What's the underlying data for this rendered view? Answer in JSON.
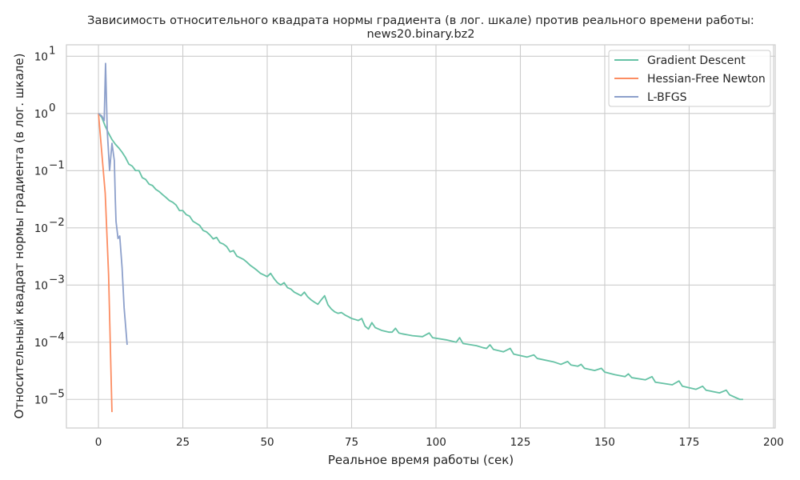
{
  "chart_data": {
    "type": "line",
    "title_line1": "Зависимость относительного квадрата нормы градиента (в лог. шкале) против реального времени работы:",
    "title_line2": "news20.binary.bz2",
    "xlabel": "Реальное время работы (сек)",
    "ylabel": "Относительный квадрат нормы градиента (в лог. шкале)",
    "xlim": [
      -9.5,
      200.5
    ],
    "ylim_log10": [
      -5.5,
      1.2
    ],
    "yscale": "log",
    "grid": true,
    "legend_position": "top-right",
    "x_ticks": [
      0,
      25,
      50,
      75,
      100,
      125,
      150,
      175,
      200
    ],
    "x_tick_labels": [
      "0",
      "25",
      "50",
      "75",
      "100",
      "125",
      "150",
      "175",
      "200"
    ],
    "y_ticks_exp": [
      1,
      0,
      -1,
      -2,
      -3,
      -4,
      -5
    ],
    "y_tick_labels": [
      {
        "base": "10",
        "exp": "1"
      },
      {
        "base": "10",
        "exp": "0"
      },
      {
        "base": "10",
        "exp": "−1"
      },
      {
        "base": "10",
        "exp": "−2"
      },
      {
        "base": "10",
        "exp": "−3"
      },
      {
        "base": "10",
        "exp": "−4"
      },
      {
        "base": "10",
        "exp": "−5"
      }
    ],
    "series": [
      {
        "name": "Gradient Descent",
        "color": "#66c2a5",
        "points": [
          [
            0,
            1.0
          ],
          [
            1,
            0.85
          ],
          [
            2,
            0.6
          ],
          [
            3,
            0.45
          ],
          [
            4,
            0.35
          ],
          [
            5,
            0.29
          ],
          [
            6,
            0.25
          ],
          [
            7,
            0.21
          ],
          [
            8,
            0.17
          ],
          [
            9,
            0.13
          ],
          [
            10,
            0.12
          ],
          [
            11,
            0.1
          ],
          [
            12,
            0.1
          ],
          [
            13,
            0.075
          ],
          [
            14,
            0.07
          ],
          [
            15,
            0.058
          ],
          [
            16,
            0.055
          ],
          [
            17,
            0.047
          ],
          [
            18,
            0.043
          ],
          [
            19,
            0.038
          ],
          [
            20,
            0.034
          ],
          [
            21,
            0.03
          ],
          [
            22,
            0.028
          ],
          [
            23,
            0.025
          ],
          [
            24,
            0.02
          ],
          [
            25,
            0.02
          ],
          [
            26,
            0.017
          ],
          [
            27,
            0.016
          ],
          [
            28,
            0.013
          ],
          [
            29,
            0.012
          ],
          [
            30,
            0.011
          ],
          [
            31,
            0.009
          ],
          [
            32,
            0.0085
          ],
          [
            33,
            0.0075
          ],
          [
            34,
            0.0064
          ],
          [
            35,
            0.0068
          ],
          [
            36,
            0.0055
          ],
          [
            37,
            0.0052
          ],
          [
            38,
            0.0047
          ],
          [
            39,
            0.0038
          ],
          [
            40,
            0.004
          ],
          [
            41,
            0.0032
          ],
          [
            42,
            0.003
          ],
          [
            43,
            0.0028
          ],
          [
            44,
            0.0025
          ],
          [
            45,
            0.0022
          ],
          [
            46,
            0.002
          ],
          [
            47,
            0.0018
          ],
          [
            48,
            0.0016
          ],
          [
            49,
            0.0015
          ],
          [
            50,
            0.0014
          ],
          [
            51,
            0.0016
          ],
          [
            52,
            0.0013
          ],
          [
            53,
            0.0011
          ],
          [
            54,
            0.001
          ],
          [
            55,
            0.0011
          ],
          [
            56,
            0.0009
          ],
          [
            57,
            0.00085
          ],
          [
            58,
            0.00075
          ],
          [
            59,
            0.0007
          ],
          [
            60,
            0.00065
          ],
          [
            61,
            0.00075
          ],
          [
            62,
            0.00062
          ],
          [
            63,
            0.00055
          ],
          [
            64,
            0.0005
          ],
          [
            65,
            0.00046
          ],
          [
            66,
            0.00055
          ],
          [
            67,
            0.00065
          ],
          [
            68,
            0.00045
          ],
          [
            69,
            0.00038
          ],
          [
            70,
            0.00034
          ],
          [
            71,
            0.00032
          ],
          [
            72,
            0.00033
          ],
          [
            73,
            0.0003
          ],
          [
            74,
            0.00028
          ],
          [
            75,
            0.00026
          ],
          [
            76,
            0.00025
          ],
          [
            77,
            0.00024
          ],
          [
            78,
            0.00026
          ],
          [
            79,
            0.00019
          ],
          [
            80,
            0.00017
          ],
          [
            81,
            0.00022
          ],
          [
            82,
            0.00018
          ],
          [
            83,
            0.00017
          ],
          [
            84,
            0.00016
          ],
          [
            85,
            0.000155
          ],
          [
            86,
            0.00015
          ],
          [
            87,
            0.00015
          ],
          [
            88,
            0.000175
          ],
          [
            89,
            0.000145
          ],
          [
            90,
            0.00014
          ],
          [
            93,
            0.00013
          ],
          [
            96,
            0.000125
          ],
          [
            98,
            0.000145
          ],
          [
            99,
            0.00012
          ],
          [
            103,
            0.00011
          ],
          [
            106,
            0.0001
          ],
          [
            107,
            0.00012
          ],
          [
            108,
            9.5e-05
          ],
          [
            112,
            8.7e-05
          ],
          [
            114,
            8e-05
          ],
          [
            115,
            7.8e-05
          ],
          [
            116,
            9e-05
          ],
          [
            117,
            7.5e-05
          ],
          [
            120,
            6.8e-05
          ],
          [
            122,
            7.8e-05
          ],
          [
            123,
            6.2e-05
          ],
          [
            127,
            5.5e-05
          ],
          [
            129,
            6e-05
          ],
          [
            130,
            5.2e-05
          ],
          [
            135,
            4.5e-05
          ],
          [
            137,
            4.1e-05
          ],
          [
            139,
            4.6e-05
          ],
          [
            140,
            4e-05
          ],
          [
            142,
            3.8e-05
          ],
          [
            143,
            4.1e-05
          ],
          [
            144,
            3.5e-05
          ],
          [
            147,
            3.2e-05
          ],
          [
            149,
            3.5e-05
          ],
          [
            150,
            3e-05
          ],
          [
            153,
            2.7e-05
          ],
          [
            156,
            2.5e-05
          ],
          [
            157,
            2.8e-05
          ],
          [
            158,
            2.4e-05
          ],
          [
            162,
            2.2e-05
          ],
          [
            164,
            2.5e-05
          ],
          [
            165,
            2e-05
          ],
          [
            170,
            1.8e-05
          ],
          [
            172,
            2.1e-05
          ],
          [
            173,
            1.7e-05
          ],
          [
            177,
            1.5e-05
          ],
          [
            179,
            1.7e-05
          ],
          [
            180,
            1.45e-05
          ],
          [
            184,
            1.3e-05
          ],
          [
            186,
            1.45e-05
          ],
          [
            187,
            1.2e-05
          ],
          [
            190,
            1e-05
          ],
          [
            191,
            1e-05
          ]
        ]
      },
      {
        "name": "Hessian-Free Newton",
        "color": "#fc8d62",
        "points": [
          [
            0,
            1.0
          ],
          [
            2,
            0.04
          ],
          [
            3,
            0.0015
          ],
          [
            4,
            6e-06
          ]
        ]
      },
      {
        "name": "L-BFGS",
        "color": "#8da0cb",
        "points": [
          [
            0,
            1.0
          ],
          [
            1,
            0.9
          ],
          [
            1.7,
            0.75
          ],
          [
            2.1,
            7.5
          ],
          [
            2.6,
            0.5
          ],
          [
            3.3,
            0.1
          ],
          [
            4,
            0.3
          ],
          [
            4.7,
            0.15
          ],
          [
            5,
            0.03
          ],
          [
            5.2,
            0.013
          ],
          [
            5.8,
            0.0065
          ],
          [
            6.3,
            0.0072
          ],
          [
            7,
            0.002
          ],
          [
            7.6,
            0.0004
          ],
          [
            8.5,
            9e-05
          ]
        ]
      }
    ]
  }
}
